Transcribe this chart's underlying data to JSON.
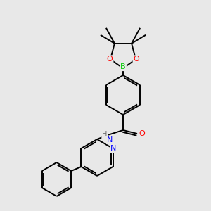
{
  "bg_color": "#e8e8e8",
  "bond_color": "#000000",
  "atom_colors": {
    "B": "#00cc00",
    "O": "#ff0000",
    "N": "#0000ff",
    "H": "#666666"
  },
  "figsize": [
    3.0,
    3.0
  ],
  "dpi": 100
}
